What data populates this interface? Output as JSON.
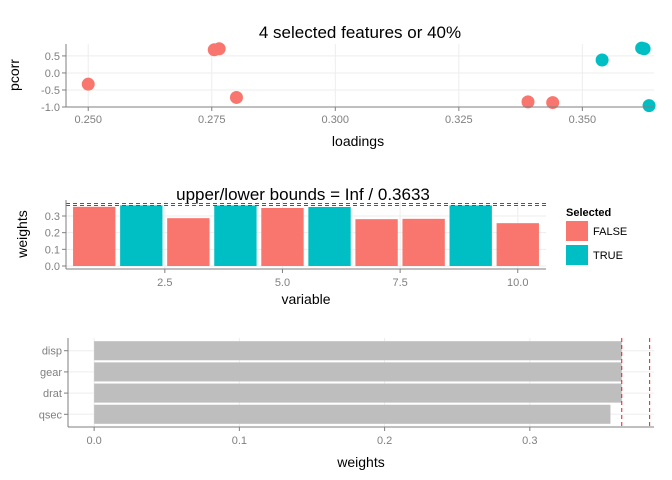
{
  "chart_data": [
    {
      "type": "scatter",
      "title": "4 selected features or 40%",
      "xlabel": "loadings",
      "ylabel": "pcorr",
      "xlim": [
        0.2455,
        0.3645
      ],
      "ylim": [
        -1.0,
        0.85
      ],
      "xticks": [
        0.25,
        0.275,
        0.3,
        0.325,
        0.35
      ],
      "xtick_labels": [
        "0.250",
        "0.275",
        "0.300",
        "0.325",
        "0.350"
      ],
      "yticks": [
        0.5,
        0.0,
        -0.5,
        -1.0
      ],
      "ytick_labels": [
        "0.5",
        "0.0",
        "-0.5",
        "-1.0"
      ],
      "grid": true,
      "colors": {
        "FALSE": "#F8766D",
        "TRUE": "#00BFC4"
      },
      "points": [
        {
          "x": 0.25,
          "y": -0.33,
          "selected": "FALSE"
        },
        {
          "x": 0.2755,
          "y": 0.68,
          "selected": "FALSE"
        },
        {
          "x": 0.2765,
          "y": 0.71,
          "selected": "FALSE"
        },
        {
          "x": 0.28,
          "y": -0.72,
          "selected": "FALSE"
        },
        {
          "x": 0.339,
          "y": -0.85,
          "selected": "FALSE"
        },
        {
          "x": 0.344,
          "y": -0.87,
          "selected": "FALSE"
        },
        {
          "x": 0.354,
          "y": 0.38,
          "selected": "TRUE"
        },
        {
          "x": 0.362,
          "y": 0.73,
          "selected": "TRUE"
        },
        {
          "x": 0.3625,
          "y": 0.71,
          "selected": "TRUE"
        },
        {
          "x": 0.3635,
          "y": -0.96,
          "selected": "TRUE"
        }
      ]
    },
    {
      "type": "bar",
      "title": "upper/lower bounds =  Inf  /  0.3633",
      "xlabel": "variable",
      "ylabel": "weights",
      "categories": [
        1,
        2,
        3,
        4,
        5,
        6,
        7,
        8,
        9,
        10
      ],
      "values": [
        0.355,
        0.3633,
        0.287,
        0.363,
        0.348,
        0.354,
        0.281,
        0.283,
        0.363,
        0.257
      ],
      "selected": [
        "FALSE",
        "TRUE",
        "FALSE",
        "TRUE",
        "FALSE",
        "TRUE",
        "FALSE",
        "FALSE",
        "TRUE",
        "FALSE"
      ],
      "xlim": [
        0.4,
        10.6
      ],
      "ylim": [
        -0.018,
        0.39
      ],
      "xticks": [
        2.5,
        5.0,
        7.5,
        10.0
      ],
      "xtick_labels": [
        "2.5",
        "5.0",
        "7.5",
        "10.0"
      ],
      "yticks": [
        0.0,
        0.1,
        0.2,
        0.3
      ],
      "ytick_labels": [
        "0.0",
        "0.1",
        "0.2",
        "0.3"
      ],
      "bound_lines": [
        0.3633,
        0.375
      ],
      "grid": true,
      "legend": {
        "title": "Selected",
        "placement": "right",
        "entries": [
          {
            "label": "FALSE",
            "color": "#F8766D"
          },
          {
            "label": "TRUE",
            "color": "#00BFC4"
          }
        ]
      }
    },
    {
      "type": "bar",
      "orientation": "horizontal",
      "xlabel": "weights",
      "ylabel": "",
      "categories": [
        "disp",
        "gear",
        "drat",
        "qsec"
      ],
      "values": [
        0.3633,
        0.3633,
        0.3633,
        0.3555
      ],
      "xlim": [
        -0.018,
        0.3855
      ],
      "xticks": [
        0.0,
        0.1,
        0.2,
        0.3
      ],
      "xtick_labels": [
        "0.0",
        "0.1",
        "0.2",
        "0.3"
      ],
      "bound_lines": [
        0.3633,
        0.3825
      ],
      "bar_color": "#BEBEBE",
      "grid": true
    }
  ]
}
